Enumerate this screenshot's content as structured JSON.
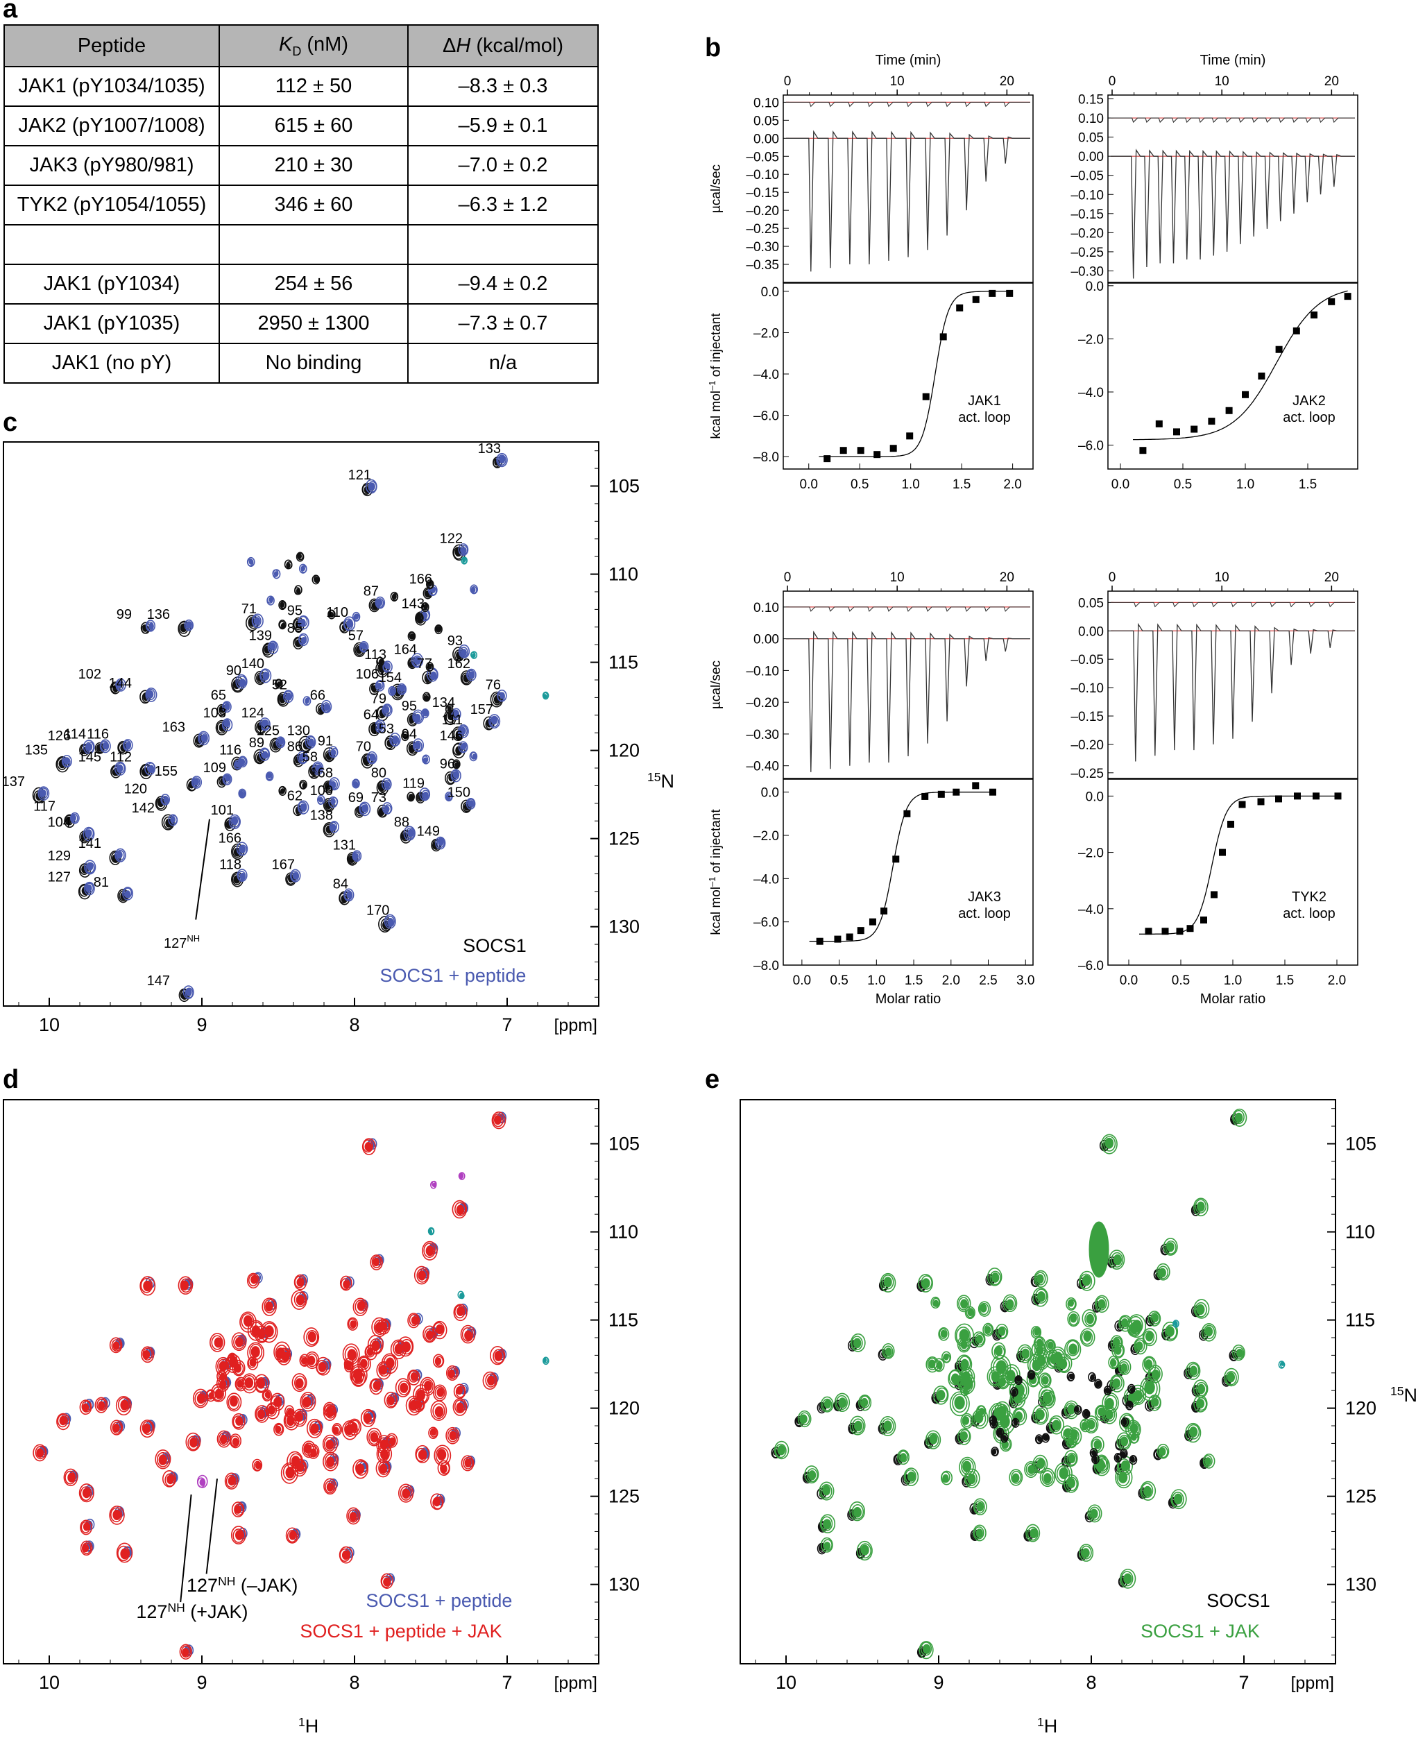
{
  "panel_labels": {
    "a": "a",
    "b": "b",
    "c": "c",
    "d": "d",
    "e": "e"
  },
  "table": {
    "headers": [
      {
        "pre": "Peptide",
        "italic": "",
        "sub": "",
        "post": ""
      },
      {
        "pre": "",
        "italic": "K",
        "sub": "D",
        "post": " (nM)"
      },
      {
        "pre": "Δ",
        "italic": "H",
        "sub": "",
        "post": " (kcal/mol)"
      }
    ],
    "rows": [
      [
        "JAK1 (pY1034/1035)",
        "112 ± 50",
        "–8.3 ± 0.3"
      ],
      [
        "JAK2 (pY1007/1008)",
        "615 ± 60",
        "–5.9 ± 0.1"
      ],
      [
        "JAK3 (pY980/981)",
        "210 ± 30",
        "–7.0 ± 0.2"
      ],
      [
        "TYK2 (pY1054/1055)",
        "346 ± 60",
        "–6.3 ± 1.2"
      ],
      [
        "",
        "",
        ""
      ],
      [
        "JAK1 (pY1034)",
        "254 ± 56",
        "–9.4 ± 0.2"
      ],
      [
        "JAK1 (pY1035)",
        "2950 ± 1300",
        "–7.3 ± 0.7"
      ],
      [
        "JAK1 (no pY)",
        "No binding",
        "n/a"
      ]
    ]
  },
  "chart_data": [
    {
      "type": "line",
      "panel": "b",
      "name": "JAK1 ITC",
      "top_xlabel": "Time (min)",
      "top_ylabel": "µcal/sec",
      "top_xticks": [
        "0",
        "10",
        "20"
      ],
      "top_yticks": [
        "0.10",
        "0.05",
        "0.00",
        "–0.05",
        "–0.10",
        "–0.15",
        "–0.20",
        "–0.25",
        "–0.30",
        "–0.35"
      ],
      "top_ylim": [
        -0.4,
        0.12
      ],
      "peaks": [
        -0.37,
        -0.36,
        -0.35,
        -0.35,
        -0.34,
        -0.33,
        -0.31,
        -0.27,
        -0.2,
        -0.12,
        -0.07
      ],
      "bottom_ylabel": "kcal mol–1 of injectant",
      "bottom_yticks": [
        "0.0",
        "–2.0",
        "–4.0",
        "–6.0",
        "–8.0"
      ],
      "bottom_ylim": [
        -8.6,
        0.4
      ],
      "bottom_xticks": [
        "0.0",
        "0.5",
        "1.0",
        "1.5",
        "2.0"
      ],
      "xlim": [
        -0.25,
        2.2
      ],
      "xlabel": "",
      "x": [
        0.18,
        0.34,
        0.51,
        0.67,
        0.83,
        0.99,
        1.15,
        1.32,
        1.48,
        1.64,
        1.8,
        1.97
      ],
      "y": [
        -8.1,
        -7.7,
        -7.7,
        -7.9,
        -7.6,
        -7.0,
        -5.1,
        -2.2,
        -0.8,
        -0.4,
        -0.1,
        -0.1
      ],
      "fit": {
        "K": -8.0,
        "n": 1.24,
        "w": 0.065
      },
      "annotation": [
        "JAK1",
        "act. loop"
      ]
    },
    {
      "type": "line",
      "panel": "b",
      "name": "JAK2 ITC",
      "top_xlabel": "Time (min)",
      "top_ylabel": "",
      "top_xticks": [
        "0",
        "10",
        "20"
      ],
      "top_yticks": [
        "0.15",
        "0.10",
        "0.05",
        "0.00",
        "–0.05",
        "–0.10",
        "–0.15",
        "–0.20",
        "–0.25",
        "–0.30"
      ],
      "top_ylim": [
        -0.33,
        0.16
      ],
      "peaks": [
        -0.32,
        -0.29,
        -0.28,
        -0.28,
        -0.27,
        -0.27,
        -0.26,
        -0.25,
        -0.23,
        -0.21,
        -0.19,
        -0.17,
        -0.15,
        -0.12,
        -0.1,
        -0.08
      ],
      "bottom_ylabel": "",
      "bottom_yticks": [
        "0.0",
        "–2.0",
        "–4.0",
        "–6.0"
      ],
      "bottom_ylim": [
        -6.9,
        0.1
      ],
      "bottom_xticks": [
        "0.0",
        "0.5",
        "1.0",
        "1.5"
      ],
      "xlim": [
        -0.1,
        1.9
      ],
      "xlabel": "",
      "x": [
        0.18,
        0.31,
        0.45,
        0.59,
        0.73,
        0.87,
        1.0,
        1.13,
        1.27,
        1.41,
        1.55,
        1.69,
        1.82
      ],
      "y": [
        -6.2,
        -5.2,
        -5.5,
        -5.4,
        -5.1,
        -4.7,
        -4.1,
        -3.4,
        -2.4,
        -1.7,
        -1.1,
        -0.6,
        -0.4
      ],
      "fit": {
        "K": -5.8,
        "n": 1.25,
        "w": 0.17
      },
      "annotation": [
        "JAK2",
        "act. loop"
      ]
    },
    {
      "type": "line",
      "panel": "b",
      "name": "JAK3 ITC",
      "top_xlabel": "",
      "top_ylabel": "µcal/sec",
      "top_xticks": [
        "0",
        "10",
        "20"
      ],
      "top_yticks": [
        "0.10",
        "0.00",
        "–0.10",
        "–0.20",
        "–0.30",
        "–0.40"
      ],
      "top_ylim": [
        -0.44,
        0.15
      ],
      "peaks": [
        -0.42,
        -0.41,
        -0.4,
        -0.39,
        -0.39,
        -0.37,
        -0.33,
        -0.26,
        -0.15,
        -0.07,
        -0.04
      ],
      "bottom_ylabel": "kcal mol–1 of injectant",
      "bottom_yticks": [
        "0.0",
        "–2.0",
        "–4.0",
        "–6.0",
        "–8.0"
      ],
      "bottom_ylim": [
        -8.0,
        0.6
      ],
      "bottom_xticks": [
        "0.0",
        "0.5",
        "1.0",
        "1.5",
        "2.0",
        "2.5",
        "3.0"
      ],
      "xlim": [
        -0.25,
        3.1
      ],
      "xlabel": "Molar ratio",
      "x": [
        0.24,
        0.48,
        0.64,
        0.79,
        0.95,
        1.1,
        1.26,
        1.41,
        1.65,
        1.87,
        2.07,
        2.33,
        2.56
      ],
      "y": [
        -6.9,
        -6.8,
        -6.7,
        -6.4,
        -6.0,
        -5.5,
        -3.1,
        -1.0,
        -0.2,
        -0.1,
        0.0,
        0.3,
        0.0
      ],
      "fit": {
        "K": -6.9,
        "n": 1.22,
        "w": 0.09
      },
      "annotation": [
        "JAK3",
        "act. loop"
      ]
    },
    {
      "type": "line",
      "panel": "b",
      "name": "TYK2 ITC",
      "top_xlabel": "",
      "top_ylabel": "",
      "top_xticks": [
        "0",
        "10",
        "20"
      ],
      "top_yticks": [
        "0.05",
        "0.00",
        "–0.05",
        "–0.10",
        "–0.15",
        "–0.20",
        "–0.25"
      ],
      "top_ylim": [
        -0.26,
        0.07
      ],
      "peaks": [
        -0.23,
        -0.22,
        -0.21,
        -0.21,
        -0.2,
        -0.19,
        -0.16,
        -0.11,
        -0.06,
        -0.04,
        -0.03
      ],
      "bottom_ylabel": "",
      "bottom_yticks": [
        "0.0",
        "–2.0",
        "–4.0",
        "–6.0"
      ],
      "bottom_ylim": [
        -6.0,
        0.6
      ],
      "bottom_xticks": [
        "0.0",
        "0.5",
        "1.0",
        "1.5",
        "2.0"
      ],
      "xlim": [
        -0.2,
        2.2
      ],
      "xlabel": "Molar ratio",
      "x": [
        0.19,
        0.35,
        0.49,
        0.59,
        0.72,
        0.82,
        0.9,
        0.98,
        1.09,
        1.27,
        1.44,
        1.62,
        1.8,
        2.01
      ],
      "y": [
        -4.8,
        -4.8,
        -4.8,
        -4.7,
        -4.4,
        -3.5,
        -2.0,
        -1.0,
        -0.3,
        -0.2,
        -0.1,
        0.0,
        0.0,
        0.0
      ],
      "fit": {
        "K": -4.9,
        "n": 0.8,
        "w": 0.07
      },
      "annotation": [
        "TYK2",
        "act. loop"
      ]
    },
    {
      "type": "scatter",
      "panel": "c",
      "name": "SOCS1 HSQC",
      "xlabel": "[ppm]",
      "ylabel": "15N",
      "ylabel_sup": "15",
      "ylabel_main": "N",
      "xlim": [
        10.3,
        6.4
      ],
      "ylim": [
        134.5,
        102.5
      ],
      "xticks": [
        "10",
        "9",
        "8",
        "7"
      ],
      "yticks": [
        "105",
        "110",
        "115",
        "120",
        "125",
        "130"
      ],
      "legend": [
        "SOCS1",
        "SOCS1 + peptide"
      ],
      "peaks": [
        {
          "label": "133",
          "x": 7.05,
          "y": 103.6
        },
        {
          "label": "121",
          "x": 7.9,
          "y": 105.1
        },
        {
          "label": "122",
          "x": 7.3,
          "y": 108.7
        },
        {
          "label": "166",
          "x": 7.5,
          "y": 111.0
        },
        {
          "label": "87",
          "x": 7.85,
          "y": 111.7
        },
        {
          "label": "143",
          "x": 7.55,
          "y": 112.4
        },
        {
          "label": "99",
          "x": 9.35,
          "y": 113.0
        },
        {
          "label": "136",
          "x": 9.1,
          "y": 113.0
        },
        {
          "label": "71",
          "x": 8.65,
          "y": 112.7
        },
        {
          "label": "95",
          "x": 8.35,
          "y": 112.8
        },
        {
          "label": "110",
          "x": 8.05,
          "y": 112.9
        },
        {
          "label": "85",
          "x": 8.35,
          "y": 113.8
        },
        {
          "label": "139",
          "x": 8.55,
          "y": 114.2
        },
        {
          "label": "57",
          "x": 7.95,
          "y": 114.2
        },
        {
          "label": "93",
          "x": 7.3,
          "y": 114.5
        },
        {
          "label": "164",
          "x": 7.6,
          "y": 115.0
        },
        {
          "label": "113",
          "x": 7.8,
          "y": 115.3
        },
        {
          "label": "102",
          "x": 9.55,
          "y": 116.4
        },
        {
          "label": "144",
          "x": 9.35,
          "y": 116.9
        },
        {
          "label": "140",
          "x": 8.6,
          "y": 115.8
        },
        {
          "label": "77",
          "x": 7.5,
          "y": 115.8
        },
        {
          "label": "162",
          "x": 7.25,
          "y": 115.8
        },
        {
          "label": "90",
          "x": 8.75,
          "y": 116.2
        },
        {
          "label": "106",
          "x": 7.85,
          "y": 116.4
        },
        {
          "label": "154",
          "x": 7.7,
          "y": 116.6
        },
        {
          "label": "52",
          "x": 8.45,
          "y": 117.0
        },
        {
          "label": "76",
          "x": 7.05,
          "y": 117.0
        },
        {
          "label": "65",
          "x": 8.85,
          "y": 117.6
        },
        {
          "label": "66",
          "x": 8.2,
          "y": 117.6
        },
        {
          "label": "79",
          "x": 7.8,
          "y": 117.8
        },
        {
          "label": "95",
          "x": 7.6,
          "y": 118.2
        },
        {
          "label": "134",
          "x": 7.35,
          "y": 118.0
        },
        {
          "label": "157",
          "x": 7.1,
          "y": 118.4
        },
        {
          "label": "103",
          "x": 8.85,
          "y": 118.6
        },
        {
          "label": "124",
          "x": 8.6,
          "y": 118.6
        },
        {
          "label": "64",
          "x": 7.85,
          "y": 118.7
        },
        {
          "label": "111",
          "x": 7.3,
          "y": 119.0
        },
        {
          "label": "163",
          "x": 9.0,
          "y": 119.4
        },
        {
          "label": "125",
          "x": 8.5,
          "y": 119.6
        },
        {
          "label": "130",
          "x": 8.3,
          "y": 119.6
        },
        {
          "label": "153",
          "x": 7.75,
          "y": 119.5
        },
        {
          "label": "94",
          "x": 7.6,
          "y": 119.8
        },
        {
          "label": "126",
          "x": 9.75,
          "y": 119.9
        },
        {
          "label": "114",
          "x": 9.65,
          "y": 119.8
        },
        {
          "label": "116",
          "x": 9.5,
          "y": 119.8
        },
        {
          "label": "91",
          "x": 8.15,
          "y": 120.2
        },
        {
          "label": "146",
          "x": 7.3,
          "y": 119.9
        },
        {
          "label": "135",
          "x": 9.9,
          "y": 120.7
        },
        {
          "label": "89",
          "x": 8.6,
          "y": 120.3
        },
        {
          "label": "116",
          "x": 8.75,
          "y": 120.7
        },
        {
          "label": "86",
          "x": 8.35,
          "y": 120.5
        },
        {
          "label": "70",
          "x": 7.9,
          "y": 120.5
        },
        {
          "label": "145",
          "x": 9.55,
          "y": 121.1
        },
        {
          "label": "112",
          "x": 9.35,
          "y": 121.1
        },
        {
          "label": "58",
          "x": 8.25,
          "y": 121.1
        },
        {
          "label": "96",
          "x": 7.35,
          "y": 121.5
        },
        {
          "label": "155",
          "x": 9.05,
          "y": 121.9
        },
        {
          "label": "109",
          "x": 8.85,
          "y": 121.7
        },
        {
          "label": "168",
          "x": 8.15,
          "y": 122.0
        },
        {
          "label": "80",
          "x": 7.8,
          "y": 122.0
        },
        {
          "label": "137",
          "x": 10.05,
          "y": 122.5
        },
        {
          "label": "119",
          "x": 7.55,
          "y": 122.6
        },
        {
          "label": "120",
          "x": 9.25,
          "y": 122.9
        },
        {
          "label": "62",
          "x": 8.35,
          "y": 123.3
        },
        {
          "label": "100",
          "x": 8.15,
          "y": 123.0
        },
        {
          "label": "69",
          "x": 7.95,
          "y": 123.4
        },
        {
          "label": "73",
          "x": 7.8,
          "y": 123.4
        },
        {
          "label": "150",
          "x": 7.25,
          "y": 123.1
        },
        {
          "label": "117",
          "x": 9.85,
          "y": 123.9
        },
        {
          "label": "142",
          "x": 9.2,
          "y": 124.0
        },
        {
          "label": "101",
          "x": 8.8,
          "y": 124.1
        },
        {
          "label": "138",
          "x": 8.15,
          "y": 124.4
        },
        {
          "label": "104",
          "x": 9.75,
          "y": 124.8
        },
        {
          "label": "88",
          "x": 7.65,
          "y": 124.8
        },
        {
          "label": "149",
          "x": 7.45,
          "y": 125.3
        },
        {
          "label": "166",
          "x": 8.75,
          "y": 125.7
        },
        {
          "label": "141",
          "x": 9.55,
          "y": 126.0
        },
        {
          "label": "131",
          "x": 8.0,
          "y": 126.1
        },
        {
          "label": "129",
          "x": 9.75,
          "y": 126.7
        },
        {
          "label": "118",
          "x": 8.75,
          "y": 127.2
        },
        {
          "label": "167",
          "x": 8.4,
          "y": 127.2
        },
        {
          "label": "127",
          "x": 9.75,
          "y": 127.9
        },
        {
          "label": "81",
          "x": 9.5,
          "y": 128.2
        },
        {
          "label": "84",
          "x": 8.05,
          "y": 128.3
        },
        {
          "label": "170",
          "x": 7.78,
          "y": 129.8
        },
        {
          "label": "147",
          "x": 9.1,
          "y": 133.8
        }
      ],
      "annotation_127": {
        "main": "127",
        "sup": "NH"
      }
    },
    {
      "type": "scatter",
      "panel": "d",
      "name": "SOCS1 + peptide + JAK HSQC",
      "xlabel": "[ppm]",
      "x_axis_title": "1H",
      "x_axis_sup": "1",
      "x_axis_main": "H",
      "xlim": [
        10.3,
        6.4
      ],
      "ylim": [
        134.5,
        102.5
      ],
      "xticks": [
        "10",
        "9",
        "8",
        "7"
      ],
      "yticks": [
        "105",
        "110",
        "115",
        "120",
        "125",
        "130"
      ],
      "legend": [
        "SOCS1 + peptide",
        "SOCS1 + peptide + JAK"
      ],
      "annotations": [
        {
          "main": "127",
          "sup": "NH",
          "post": " (–JAK)"
        },
        {
          "main": "127",
          "sup": "NH",
          "post": " (+JAK)"
        }
      ]
    },
    {
      "type": "scatter",
      "panel": "e",
      "name": "SOCS1 + JAK HSQC",
      "xlabel": "[ppm]",
      "x_axis_title": "1H",
      "x_axis_sup": "1",
      "x_axis_main": "H",
      "ylabel": "15N",
      "ylabel_sup": "15",
      "ylabel_main": "N",
      "xlim": [
        10.3,
        6.4
      ],
      "ylim": [
        134.5,
        102.5
      ],
      "xticks": [
        "10",
        "9",
        "8",
        "7"
      ],
      "yticks": [
        "105",
        "110",
        "115",
        "120",
        "125",
        "130"
      ],
      "legend": [
        "SOCS1",
        "SOCS1 + JAK"
      ]
    }
  ],
  "colors": {
    "black": "#111111",
    "blue": "#4a5ab0",
    "red": "#e02020",
    "green": "#3aa040",
    "cyan": "#1a9a9a",
    "magenta": "#b040c0",
    "fit_red": "#d04040"
  }
}
